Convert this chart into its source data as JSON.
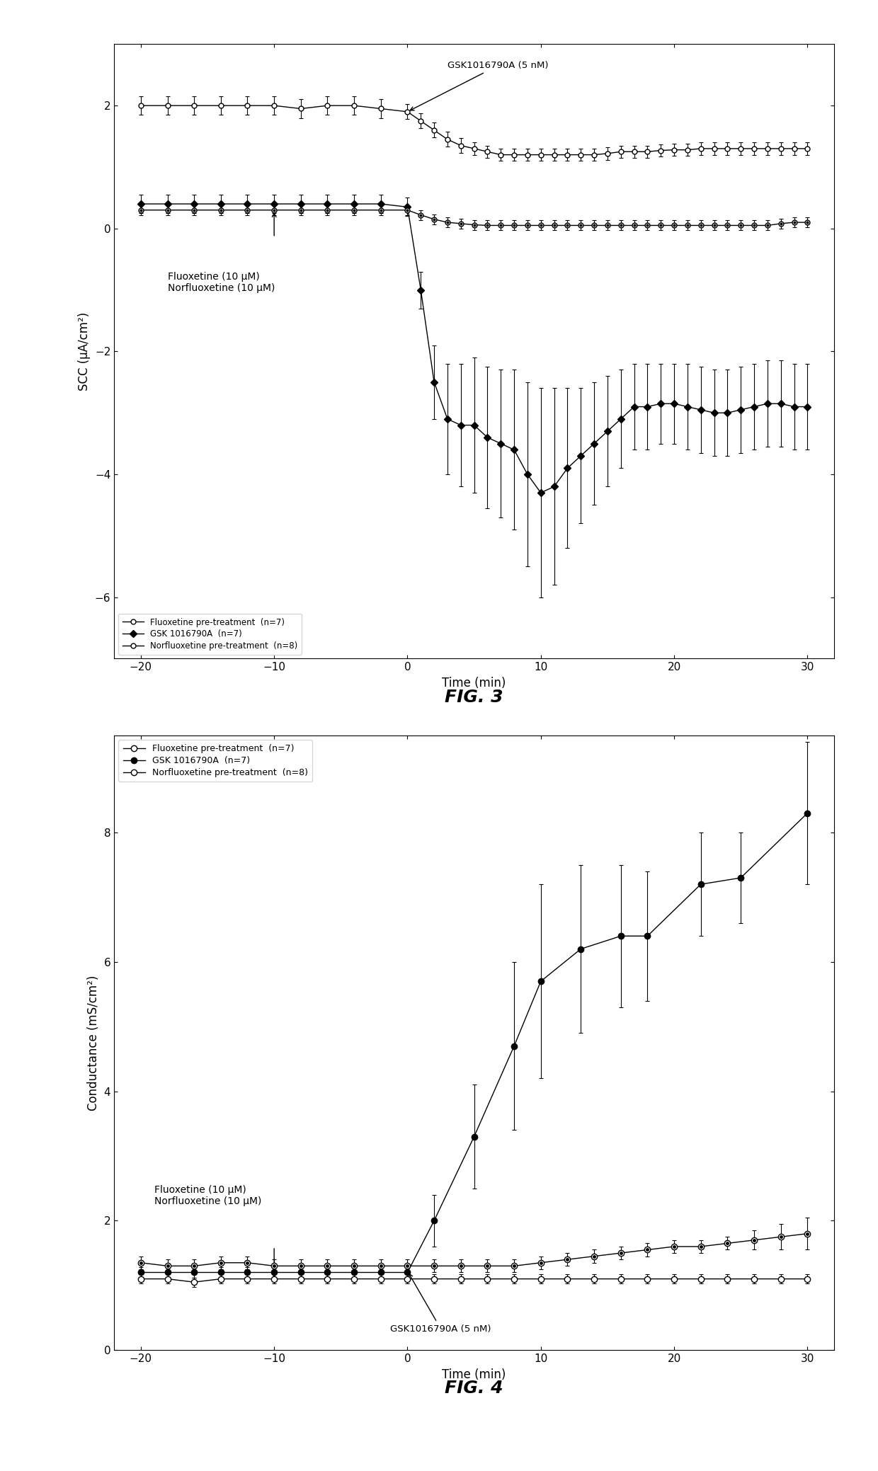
{
  "fig3": {
    "fig_label": "FIG. 3",
    "xlabel": "Time (min)",
    "ylabel": "SCC (μA/cm²)",
    "xlim": [
      -22,
      32
    ],
    "ylim": [
      -7,
      3
    ],
    "yticks": [
      -6,
      -4,
      -2,
      0,
      2
    ],
    "xticks": [
      -20,
      -10,
      0,
      10,
      20,
      30
    ],
    "annotation_gsk": "GSK1016790A (5 nM)",
    "annotation_drug": "Fluoxetine (10 μM)\nNorfluoxetine (10 μM)",
    "legend_entries": [
      "Fluoxetine pre-treatment  (n=7)",
      "GSK 1016790A  (n=7)",
      "Norfluoxetine pre-treatment  (n=8)"
    ],
    "fluoxetine_x": [
      -20,
      -18,
      -16,
      -14,
      -12,
      -10,
      -8,
      -6,
      -4,
      -2,
      0,
      1,
      2,
      3,
      4,
      5,
      6,
      7,
      8,
      9,
      10,
      11,
      12,
      13,
      14,
      15,
      16,
      17,
      18,
      19,
      20,
      21,
      22,
      23,
      24,
      25,
      26,
      27,
      28,
      29,
      30
    ],
    "fluoxetine_y": [
      2.0,
      2.0,
      2.0,
      2.0,
      2.0,
      2.0,
      1.95,
      2.0,
      2.0,
      1.95,
      1.9,
      1.75,
      1.6,
      1.45,
      1.35,
      1.3,
      1.25,
      1.2,
      1.2,
      1.2,
      1.2,
      1.2,
      1.2,
      1.2,
      1.2,
      1.22,
      1.25,
      1.25,
      1.25,
      1.27,
      1.28,
      1.28,
      1.3,
      1.3,
      1.3,
      1.3,
      1.3,
      1.3,
      1.3,
      1.3,
      1.3
    ],
    "fluoxetine_err": [
      0.15,
      0.15,
      0.15,
      0.15,
      0.15,
      0.15,
      0.15,
      0.15,
      0.15,
      0.15,
      0.12,
      0.12,
      0.12,
      0.12,
      0.12,
      0.1,
      0.1,
      0.1,
      0.1,
      0.1,
      0.1,
      0.1,
      0.1,
      0.1,
      0.1,
      0.1,
      0.1,
      0.1,
      0.1,
      0.1,
      0.1,
      0.1,
      0.1,
      0.1,
      0.1,
      0.1,
      0.1,
      0.1,
      0.1,
      0.1,
      0.1
    ],
    "gsk_x": [
      -20,
      -18,
      -16,
      -14,
      -12,
      -10,
      -8,
      -6,
      -4,
      -2,
      0,
      1,
      2,
      3,
      4,
      5,
      6,
      7,
      8,
      9,
      10,
      11,
      12,
      13,
      14,
      15,
      16,
      17,
      18,
      19,
      20,
      21,
      22,
      23,
      24,
      25,
      26,
      27,
      28,
      29,
      30
    ],
    "gsk_y": [
      0.4,
      0.4,
      0.4,
      0.4,
      0.4,
      0.4,
      0.4,
      0.4,
      0.4,
      0.4,
      0.35,
      -1.0,
      -2.5,
      -3.1,
      -3.2,
      -3.2,
      -3.4,
      -3.5,
      -3.6,
      -4.0,
      -4.3,
      -4.2,
      -3.9,
      -3.7,
      -3.5,
      -3.3,
      -3.1,
      -2.9,
      -2.9,
      -2.85,
      -2.85,
      -2.9,
      -2.95,
      -3.0,
      -3.0,
      -2.95,
      -2.9,
      -2.85,
      -2.85,
      -2.9,
      -2.9
    ],
    "gsk_err": [
      0.15,
      0.15,
      0.15,
      0.15,
      0.15,
      0.15,
      0.15,
      0.15,
      0.15,
      0.15,
      0.15,
      0.3,
      0.6,
      0.9,
      1.0,
      1.1,
      1.15,
      1.2,
      1.3,
      1.5,
      1.7,
      1.6,
      1.3,
      1.1,
      1.0,
      0.9,
      0.8,
      0.7,
      0.7,
      0.65,
      0.65,
      0.7,
      0.7,
      0.7,
      0.7,
      0.7,
      0.7,
      0.7,
      0.7,
      0.7,
      0.7
    ],
    "norfluoxetine_x": [
      -20,
      -18,
      -16,
      -14,
      -12,
      -10,
      -8,
      -6,
      -4,
      -2,
      0,
      1,
      2,
      3,
      4,
      5,
      6,
      7,
      8,
      9,
      10,
      11,
      12,
      13,
      14,
      15,
      16,
      17,
      18,
      19,
      20,
      21,
      22,
      23,
      24,
      25,
      26,
      27,
      28,
      29,
      30
    ],
    "norfluoxetine_y": [
      0.3,
      0.3,
      0.3,
      0.3,
      0.3,
      0.3,
      0.3,
      0.3,
      0.3,
      0.3,
      0.3,
      0.22,
      0.15,
      0.1,
      0.08,
      0.06,
      0.05,
      0.05,
      0.05,
      0.05,
      0.05,
      0.05,
      0.05,
      0.05,
      0.05,
      0.05,
      0.05,
      0.05,
      0.05,
      0.05,
      0.05,
      0.05,
      0.05,
      0.05,
      0.05,
      0.05,
      0.05,
      0.05,
      0.08,
      0.1,
      0.1
    ],
    "norfluoxetine_err": [
      0.08,
      0.08,
      0.08,
      0.08,
      0.08,
      0.08,
      0.08,
      0.08,
      0.08,
      0.08,
      0.08,
      0.08,
      0.08,
      0.08,
      0.08,
      0.08,
      0.08,
      0.08,
      0.08,
      0.08,
      0.08,
      0.08,
      0.08,
      0.08,
      0.08,
      0.08,
      0.08,
      0.08,
      0.08,
      0.08,
      0.08,
      0.08,
      0.08,
      0.08,
      0.08,
      0.08,
      0.08,
      0.08,
      0.08,
      0.08,
      0.08
    ]
  },
  "fig4": {
    "fig_label": "FIG. 4",
    "xlabel": "Time (min)",
    "ylabel": "Conductance (mS/cm²)",
    "xlim": [
      -22,
      32
    ],
    "ylim": [
      0,
      9.5
    ],
    "yticks": [
      0,
      2,
      4,
      6,
      8
    ],
    "xticks": [
      -20,
      -10,
      0,
      10,
      20,
      30
    ],
    "annotation_gsk": "GSK1016790A (5 nM)",
    "annotation_drug": "Fluoxetine (10 μM)\nNorfluoxetine (10 μM)",
    "legend_entries": [
      "Fluoxetine pre-treatment  (n=7)",
      "GSK 1016790A  (n=7)",
      "Norfluoxetine pre-treatment  (n=8)"
    ],
    "fluoxetine_x": [
      -20,
      -18,
      -16,
      -14,
      -12,
      -10,
      -8,
      -6,
      -4,
      -2,
      0,
      2,
      4,
      6,
      8,
      10,
      12,
      14,
      16,
      18,
      20,
      22,
      24,
      26,
      28,
      30
    ],
    "fluoxetine_y": [
      1.1,
      1.1,
      1.05,
      1.1,
      1.1,
      1.1,
      1.1,
      1.1,
      1.1,
      1.1,
      1.1,
      1.1,
      1.1,
      1.1,
      1.1,
      1.1,
      1.1,
      1.1,
      1.1,
      1.1,
      1.1,
      1.1,
      1.1,
      1.1,
      1.1,
      1.1
    ],
    "fluoxetine_err": [
      0.07,
      0.07,
      0.07,
      0.07,
      0.07,
      0.07,
      0.07,
      0.07,
      0.07,
      0.07,
      0.07,
      0.07,
      0.07,
      0.07,
      0.07,
      0.07,
      0.07,
      0.07,
      0.07,
      0.07,
      0.07,
      0.07,
      0.07,
      0.07,
      0.07,
      0.07
    ],
    "gsk_x": [
      -20,
      -18,
      -16,
      -14,
      -12,
      -10,
      -8,
      -6,
      -4,
      -2,
      0,
      2,
      5,
      8,
      10,
      13,
      16,
      18,
      22,
      25,
      30
    ],
    "gsk_y": [
      1.2,
      1.2,
      1.2,
      1.2,
      1.2,
      1.2,
      1.2,
      1.2,
      1.2,
      1.2,
      1.2,
      2.0,
      3.3,
      4.7,
      5.7,
      6.2,
      6.4,
      6.4,
      7.2,
      7.3,
      8.3
    ],
    "gsk_err": [
      0.08,
      0.08,
      0.08,
      0.08,
      0.08,
      0.08,
      0.08,
      0.08,
      0.08,
      0.08,
      0.08,
      0.4,
      0.8,
      1.3,
      1.5,
      1.3,
      1.1,
      1.0,
      0.8,
      0.7,
      1.1
    ],
    "norfluoxetine_x": [
      -20,
      -18,
      -16,
      -14,
      -12,
      -10,
      -8,
      -6,
      -4,
      -2,
      0,
      2,
      4,
      6,
      8,
      10,
      12,
      14,
      16,
      18,
      20,
      22,
      24,
      26,
      28,
      30
    ],
    "norfluoxetine_y": [
      1.35,
      1.3,
      1.3,
      1.35,
      1.35,
      1.3,
      1.3,
      1.3,
      1.3,
      1.3,
      1.3,
      1.3,
      1.3,
      1.3,
      1.3,
      1.35,
      1.4,
      1.45,
      1.5,
      1.55,
      1.6,
      1.6,
      1.65,
      1.7,
      1.75,
      1.8
    ],
    "norfluoxetine_err": [
      0.1,
      0.1,
      0.1,
      0.1,
      0.1,
      0.1,
      0.1,
      0.1,
      0.1,
      0.1,
      0.1,
      0.1,
      0.1,
      0.1,
      0.1,
      0.1,
      0.1,
      0.1,
      0.1,
      0.1,
      0.1,
      0.1,
      0.1,
      0.15,
      0.2,
      0.25
    ]
  }
}
